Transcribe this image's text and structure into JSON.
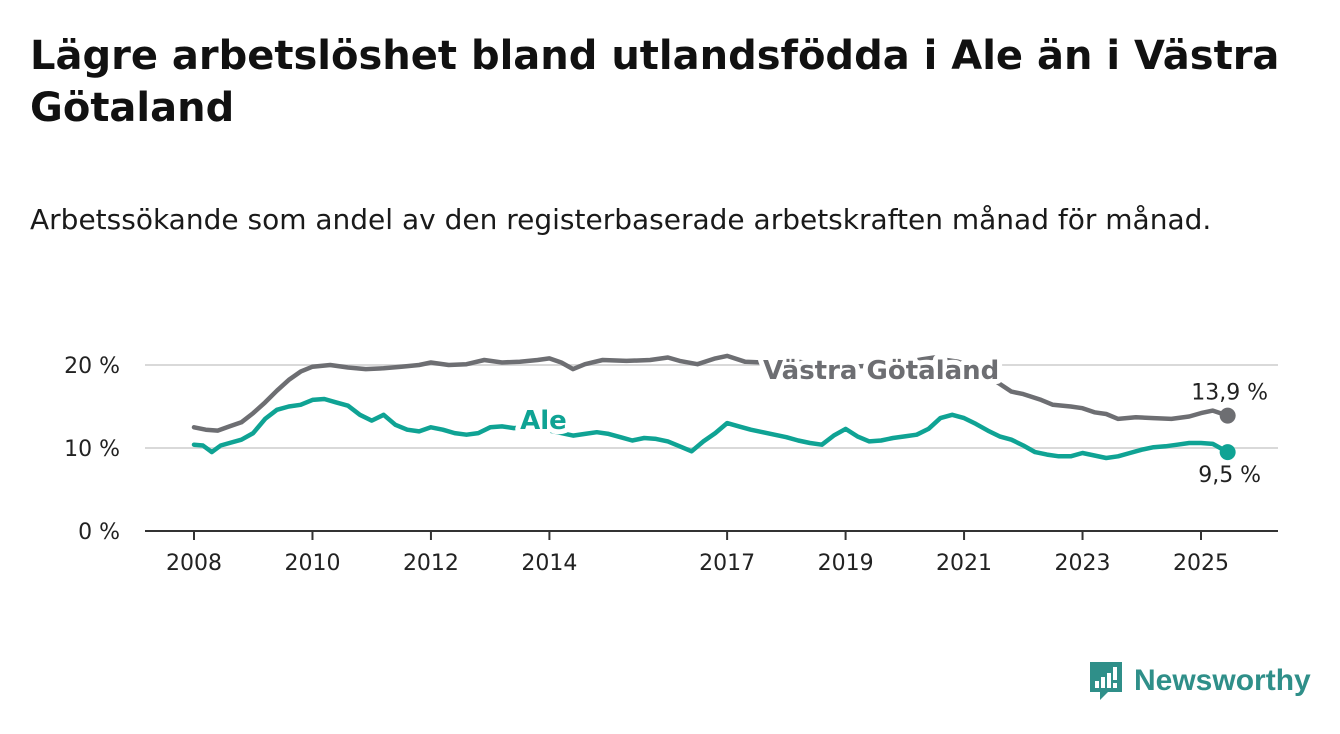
{
  "title": "Lägre arbetslöshet bland utlandsfödda i Ale än i Västra Götaland",
  "subtitle": "Arbetssökande som andel av den registerbaserade arbetskraften månad för månad.",
  "brand": {
    "name": "Newsworthy",
    "icon": "newsworthy-logo-icon",
    "color": "#2f8f89"
  },
  "chart_data": {
    "type": "line",
    "title": "Lägre arbetslöshet bland utlandsfödda i Ale än i Västra Götaland",
    "subtitle": "Arbetssökande som andel av den registerbaserade arbetskraften månad för månad.",
    "xlabel": "",
    "ylabel": "",
    "xlim": [
      2008.0,
      2026.3
    ],
    "ylim": [
      0,
      20
    ],
    "y_ticks": [
      0,
      10,
      20
    ],
    "y_tick_labels": [
      "0 %",
      "10 %",
      "20 %"
    ],
    "x_ticks": [
      2008,
      2010,
      2012,
      2014,
      2017,
      2019,
      2021,
      2023,
      2025
    ],
    "x_tick_labels": [
      "2008",
      "2010",
      "2012",
      "2014",
      "2017",
      "2019",
      "2021",
      "2023",
      "2025"
    ],
    "grid": true,
    "legend": "inline labels",
    "series": [
      {
        "name": "Västra Götaland",
        "color": "#6d6e72",
        "end_label": "13,9 %",
        "label_year": 2019.6,
        "label_value": 18.3,
        "points": [
          [
            2008.0,
            12.5
          ],
          [
            2008.2,
            12.2
          ],
          [
            2008.4,
            12.1
          ],
          [
            2008.6,
            12.6
          ],
          [
            2008.8,
            13.1
          ],
          [
            2009.0,
            14.2
          ],
          [
            2009.2,
            15.5
          ],
          [
            2009.4,
            16.9
          ],
          [
            2009.6,
            18.2
          ],
          [
            2009.8,
            19.2
          ],
          [
            2010.0,
            19.8
          ],
          [
            2010.3,
            20.0
          ],
          [
            2010.6,
            19.7
          ],
          [
            2010.9,
            19.5
          ],
          [
            2011.2,
            19.6
          ],
          [
            2011.5,
            19.8
          ],
          [
            2011.8,
            20.0
          ],
          [
            2012.0,
            20.3
          ],
          [
            2012.3,
            20.0
          ],
          [
            2012.6,
            20.1
          ],
          [
            2012.9,
            20.6
          ],
          [
            2013.2,
            20.3
          ],
          [
            2013.5,
            20.4
          ],
          [
            2013.8,
            20.6
          ],
          [
            2014.0,
            20.8
          ],
          [
            2014.2,
            20.3
          ],
          [
            2014.4,
            19.5
          ],
          [
            2014.6,
            20.1
          ],
          [
            2014.9,
            20.6
          ],
          [
            2015.3,
            20.5
          ],
          [
            2015.7,
            20.6
          ],
          [
            2016.0,
            20.9
          ],
          [
            2016.2,
            20.5
          ],
          [
            2016.5,
            20.1
          ],
          [
            2016.8,
            20.8
          ],
          [
            2017.0,
            21.1
          ],
          [
            2017.3,
            20.4
          ],
          [
            2017.6,
            20.3
          ],
          [
            2017.9,
            20.5
          ],
          [
            2018.2,
            20.4
          ],
          [
            2018.5,
            20.1
          ],
          [
            2018.8,
            20.0
          ],
          [
            2019.1,
            19.8
          ],
          [
            2019.4,
            19.9
          ],
          [
            2019.7,
            20.1
          ],
          [
            2020.0,
            20.3
          ],
          [
            2020.3,
            20.7
          ],
          [
            2020.5,
            20.9
          ],
          [
            2020.7,
            20.6
          ],
          [
            2020.9,
            20.4
          ],
          [
            2021.1,
            19.9
          ],
          [
            2021.3,
            19.3
          ],
          [
            2021.5,
            18.2
          ],
          [
            2021.8,
            16.8
          ],
          [
            2022.0,
            16.5
          ],
          [
            2022.3,
            15.8
          ],
          [
            2022.5,
            15.2
          ],
          [
            2022.8,
            15.0
          ],
          [
            2023.0,
            14.8
          ],
          [
            2023.2,
            14.3
          ],
          [
            2023.4,
            14.1
          ],
          [
            2023.6,
            13.5
          ],
          [
            2023.9,
            13.7
          ],
          [
            2024.2,
            13.6
          ],
          [
            2024.5,
            13.5
          ],
          [
            2024.8,
            13.8
          ],
          [
            2025.0,
            14.2
          ],
          [
            2025.2,
            14.5
          ],
          [
            2025.45,
            13.9
          ]
        ]
      },
      {
        "name": "Ale",
        "color": "#0fa394",
        "end_label": "9,5 %",
        "label_year": 2013.9,
        "label_value": 12.3,
        "points": [
          [
            2008.0,
            10.4
          ],
          [
            2008.15,
            10.3
          ],
          [
            2008.3,
            9.5
          ],
          [
            2008.45,
            10.3
          ],
          [
            2008.6,
            10.6
          ],
          [
            2008.8,
            11.0
          ],
          [
            2009.0,
            11.8
          ],
          [
            2009.2,
            13.5
          ],
          [
            2009.4,
            14.6
          ],
          [
            2009.6,
            15.0
          ],
          [
            2009.8,
            15.2
          ],
          [
            2010.0,
            15.8
          ],
          [
            2010.2,
            15.9
          ],
          [
            2010.4,
            15.5
          ],
          [
            2010.6,
            15.1
          ],
          [
            2010.8,
            14.0
          ],
          [
            2011.0,
            13.3
          ],
          [
            2011.2,
            14.0
          ],
          [
            2011.4,
            12.8
          ],
          [
            2011.6,
            12.2
          ],
          [
            2011.8,
            12.0
          ],
          [
            2012.0,
            12.5
          ],
          [
            2012.2,
            12.2
          ],
          [
            2012.4,
            11.8
          ],
          [
            2012.6,
            11.6
          ],
          [
            2012.8,
            11.8
          ],
          [
            2013.0,
            12.5
          ],
          [
            2013.2,
            12.6
          ],
          [
            2013.4,
            12.4
          ],
          [
            2013.6,
            12.5
          ],
          [
            2013.8,
            12.3
          ],
          [
            2014.0,
            12.1
          ],
          [
            2014.2,
            11.8
          ],
          [
            2014.4,
            11.5
          ],
          [
            2014.6,
            11.7
          ],
          [
            2014.8,
            11.9
          ],
          [
            2015.0,
            11.7
          ],
          [
            2015.2,
            11.3
          ],
          [
            2015.4,
            10.9
          ],
          [
            2015.6,
            11.2
          ],
          [
            2015.8,
            11.1
          ],
          [
            2016.0,
            10.8
          ],
          [
            2016.2,
            10.2
          ],
          [
            2016.4,
            9.6
          ],
          [
            2016.6,
            10.8
          ],
          [
            2016.8,
            11.8
          ],
          [
            2017.0,
            13.0
          ],
          [
            2017.2,
            12.6
          ],
          [
            2017.4,
            12.2
          ],
          [
            2017.6,
            11.9
          ],
          [
            2017.8,
            11.6
          ],
          [
            2018.0,
            11.3
          ],
          [
            2018.2,
            10.9
          ],
          [
            2018.4,
            10.6
          ],
          [
            2018.6,
            10.4
          ],
          [
            2018.8,
            11.5
          ],
          [
            2019.0,
            12.3
          ],
          [
            2019.2,
            11.4
          ],
          [
            2019.4,
            10.8
          ],
          [
            2019.6,
            10.9
          ],
          [
            2019.8,
            11.2
          ],
          [
            2020.0,
            11.4
          ],
          [
            2020.2,
            11.6
          ],
          [
            2020.4,
            12.3
          ],
          [
            2020.6,
            13.6
          ],
          [
            2020.8,
            14.0
          ],
          [
            2021.0,
            13.6
          ],
          [
            2021.2,
            12.9
          ],
          [
            2021.4,
            12.1
          ],
          [
            2021.6,
            11.4
          ],
          [
            2021.8,
            11.0
          ],
          [
            2022.0,
            10.3
          ],
          [
            2022.2,
            9.5
          ],
          [
            2022.4,
            9.2
          ],
          [
            2022.6,
            9.0
          ],
          [
            2022.8,
            9.0
          ],
          [
            2023.0,
            9.4
          ],
          [
            2023.2,
            9.1
          ],
          [
            2023.4,
            8.8
          ],
          [
            2023.6,
            9.0
          ],
          [
            2023.8,
            9.4
          ],
          [
            2024.0,
            9.8
          ],
          [
            2024.2,
            10.1
          ],
          [
            2024.4,
            10.2
          ],
          [
            2024.6,
            10.4
          ],
          [
            2024.8,
            10.6
          ],
          [
            2025.0,
            10.6
          ],
          [
            2025.2,
            10.5
          ],
          [
            2025.45,
            9.5
          ]
        ]
      }
    ]
  }
}
